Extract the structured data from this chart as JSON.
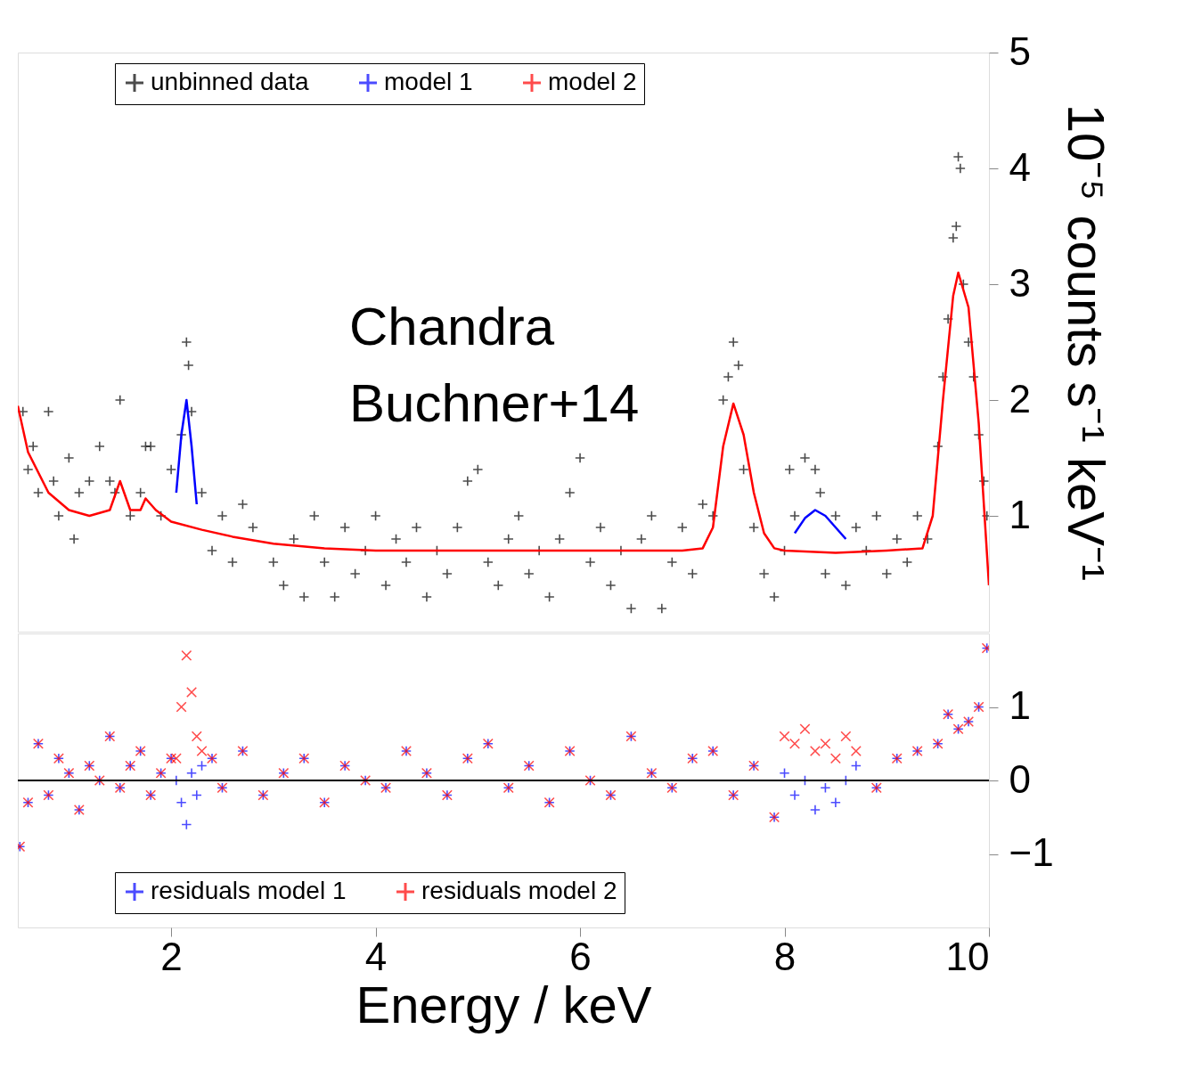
{
  "chart_data": [
    {
      "type": "scatter",
      "ylabel": "10⁻⁵ counts s⁻¹ keV⁻¹",
      "xlim": [
        0.5,
        10
      ],
      "xticks": [
        2,
        4,
        6,
        8,
        10
      ],
      "ylim": [
        0,
        5
      ],
      "yticks": [
        1,
        2,
        3,
        4,
        5
      ],
      "tick_labels": "y",
      "legend": "top",
      "annotations": [
        "Chandra",
        "Buchner+14"
      ],
      "series": [
        {
          "name": "unbinned data",
          "type": "scatter",
          "marker": "cross",
          "color": "#000000",
          "x": [
            0.55,
            0.6,
            0.65,
            0.7,
            0.8,
            0.85,
            0.9,
            1.0,
            1.05,
            1.1,
            1.2,
            1.3,
            1.4,
            1.45,
            1.5,
            1.6,
            1.7,
            1.75,
            1.8,
            1.9,
            2.0,
            2.1,
            2.15,
            2.17,
            2.2,
            2.3,
            2.4,
            2.5,
            2.6,
            2.7,
            2.8,
            3.0,
            3.1,
            3.2,
            3.3,
            3.4,
            3.5,
            3.6,
            3.7,
            3.8,
            3.9,
            4.0,
            4.1,
            4.2,
            4.3,
            4.4,
            4.5,
            4.6,
            4.7,
            4.8,
            4.9,
            5.0,
            5.1,
            5.2,
            5.3,
            5.4,
            5.5,
            5.6,
            5.7,
            5.8,
            5.9,
            6.0,
            6.1,
            6.2,
            6.3,
            6.4,
            6.5,
            6.6,
            6.7,
            6.8,
            6.9,
            7.0,
            7.1,
            7.2,
            7.3,
            7.4,
            7.45,
            7.5,
            7.55,
            7.6,
            7.7,
            7.8,
            7.9,
            8.0,
            8.05,
            8.1,
            8.2,
            8.3,
            8.35,
            8.4,
            8.5,
            8.6,
            8.7,
            8.8,
            8.9,
            9.0,
            9.1,
            9.2,
            9.3,
            9.4,
            9.5,
            9.55,
            9.6,
            9.65,
            9.68,
            9.7,
            9.72,
            9.75,
            9.8,
            9.85,
            9.9,
            9.95,
            9.98
          ],
          "values": [
            1.9,
            1.4,
            1.6,
            1.2,
            1.9,
            1.3,
            1.0,
            1.5,
            0.8,
            1.2,
            1.3,
            1.6,
            1.3,
            1.2,
            2.0,
            1.0,
            1.2,
            1.6,
            1.6,
            1.0,
            1.4,
            1.7,
            2.5,
            2.3,
            1.9,
            1.2,
            0.7,
            1.0,
            0.6,
            1.1,
            0.9,
            0.6,
            0.4,
            0.8,
            0.3,
            1.0,
            0.6,
            0.3,
            0.9,
            0.5,
            0.7,
            1.0,
            0.4,
            0.8,
            0.6,
            0.9,
            0.3,
            0.7,
            0.5,
            0.9,
            1.3,
            1.4,
            0.6,
            0.4,
            0.8,
            1.0,
            0.5,
            0.7,
            0.3,
            0.8,
            1.2,
            1.5,
            0.6,
            0.9,
            0.4,
            0.7,
            0.2,
            0.8,
            1.0,
            0.2,
            0.6,
            0.9,
            0.5,
            1.1,
            1.0,
            2.0,
            2.2,
            2.5,
            2.3,
            1.4,
            0.9,
            0.5,
            0.3,
            0.7,
            1.4,
            1.0,
            1.5,
            1.4,
            1.2,
            0.5,
            1.0,
            0.4,
            0.9,
            0.7,
            1.0,
            0.5,
            0.8,
            0.6,
            1.0,
            0.8,
            1.6,
            2.2,
            2.7,
            3.4,
            3.5,
            4.1,
            4.0,
            3.0,
            2.5,
            2.2,
            1.7,
            1.3,
            1.0
          ]
        },
        {
          "name": "model 1",
          "type": "line",
          "color": "#0000ff",
          "x": [
            2.05,
            2.1,
            2.15,
            2.2,
            2.25,
            5.0,
            8.1,
            8.2,
            8.3,
            8.4,
            8.5,
            8.6
          ],
          "values": [
            1.2,
            1.7,
            2.0,
            1.6,
            1.1,
            null,
            0.85,
            0.98,
            1.05,
            1.0,
            0.9,
            0.8
          ]
        },
        {
          "name": "model 2",
          "type": "line",
          "color": "#ff0000",
          "x": [
            0.5,
            0.6,
            0.8,
            1.0,
            1.2,
            1.4,
            1.5,
            1.6,
            1.7,
            1.75,
            1.85,
            2.0,
            2.3,
            2.6,
            3.0,
            3.5,
            4.0,
            5.0,
            6.0,
            7.0,
            7.2,
            7.3,
            7.4,
            7.5,
            7.6,
            7.7,
            7.8,
            7.9,
            8.0,
            8.5,
            9.0,
            9.35,
            9.45,
            9.55,
            9.65,
            9.7,
            9.8,
            9.9,
            10.0
          ],
          "values": [
            1.95,
            1.55,
            1.2,
            1.05,
            1.0,
            1.05,
            1.3,
            1.05,
            1.05,
            1.15,
            1.05,
            0.95,
            0.88,
            0.82,
            0.76,
            0.72,
            0.7,
            0.7,
            0.7,
            0.7,
            0.72,
            0.9,
            1.6,
            1.97,
            1.7,
            1.2,
            0.85,
            0.72,
            0.7,
            0.68,
            0.7,
            0.72,
            1.0,
            2.0,
            2.9,
            3.1,
            2.8,
            1.8,
            0.4
          ]
        }
      ]
    },
    {
      "type": "scatter",
      "xlabel": "Energy / keV",
      "xlim": [
        0.5,
        10
      ],
      "xticks": [
        2,
        4,
        6,
        8,
        10
      ],
      "ylim": [
        -2,
        2
      ],
      "yticks": [
        {
          "value": -1,
          "label": "−1"
        },
        0,
        1
      ],
      "legend": "bottom",
      "ref_lines": [
        {
          "axis": "y",
          "value": 0,
          "color": "#000000"
        }
      ],
      "x": [
        0.52,
        0.6,
        0.7,
        0.8,
        0.9,
        1.0,
        1.1,
        1.2,
        1.3,
        1.4,
        1.5,
        1.6,
        1.7,
        1.8,
        1.9,
        2.0,
        2.05,
        2.1,
        2.15,
        2.2,
        2.25,
        2.3,
        2.4,
        2.5,
        2.7,
        2.9,
        3.1,
        3.3,
        3.5,
        3.7,
        3.9,
        4.1,
        4.3,
        4.5,
        4.7,
        4.9,
        5.1,
        5.3,
        5.5,
        5.7,
        5.9,
        6.1,
        6.3,
        6.5,
        6.7,
        6.9,
        7.1,
        7.3,
        7.5,
        7.7,
        7.9,
        8.0,
        8.1,
        8.2,
        8.3,
        8.4,
        8.5,
        8.6,
        8.7,
        8.9,
        9.1,
        9.3,
        9.5,
        9.6,
        9.7,
        9.8,
        9.9,
        9.98
      ],
      "series": [
        {
          "name": "residuals model 1",
          "marker": "cross",
          "color": "#0000ff",
          "values": [
            -0.9,
            -0.3,
            0.5,
            -0.2,
            0.3,
            0.1,
            -0.4,
            0.2,
            0.0,
            0.6,
            -0.1,
            0.2,
            0.4,
            -0.2,
            0.1,
            0.3,
            0.0,
            -0.3,
            -0.6,
            0.1,
            -0.2,
            0.2,
            0.3,
            -0.1,
            0.4,
            -0.2,
            0.1,
            0.3,
            -0.3,
            0.2,
            0.0,
            -0.1,
            0.4,
            0.1,
            -0.2,
            0.3,
            0.5,
            -0.1,
            0.2,
            -0.3,
            0.4,
            0.0,
            -0.2,
            0.6,
            0.1,
            -0.1,
            0.3,
            0.4,
            -0.2,
            0.2,
            -0.5,
            0.1,
            -0.2,
            0.0,
            -0.4,
            -0.1,
            -0.3,
            0.0,
            0.2,
            -0.1,
            0.3,
            0.4,
            0.5,
            0.9,
            0.7,
            0.8,
            1.0,
            1.8
          ]
        },
        {
          "name": "residuals model 2",
          "marker": "x",
          "color": "#ff0000",
          "values": [
            -0.9,
            -0.3,
            0.5,
            -0.2,
            0.3,
            0.1,
            -0.4,
            0.2,
            0.0,
            0.6,
            -0.1,
            0.2,
            0.4,
            -0.2,
            0.1,
            0.3,
            0.3,
            1.0,
            1.7,
            1.2,
            0.6,
            0.4,
            0.3,
            -0.1,
            0.4,
            -0.2,
            0.1,
            0.3,
            -0.3,
            0.2,
            0.0,
            -0.1,
            0.4,
            0.1,
            -0.2,
            0.3,
            0.5,
            -0.1,
            0.2,
            -0.3,
            0.4,
            0.0,
            -0.2,
            0.6,
            0.1,
            -0.1,
            0.3,
            0.4,
            -0.2,
            0.2,
            -0.5,
            0.6,
            0.5,
            0.7,
            0.4,
            0.5,
            0.3,
            0.6,
            0.4,
            -0.1,
            0.3,
            0.4,
            0.5,
            0.9,
            0.7,
            0.8,
            1.0,
            1.8
          ]
        }
      ]
    }
  ]
}
